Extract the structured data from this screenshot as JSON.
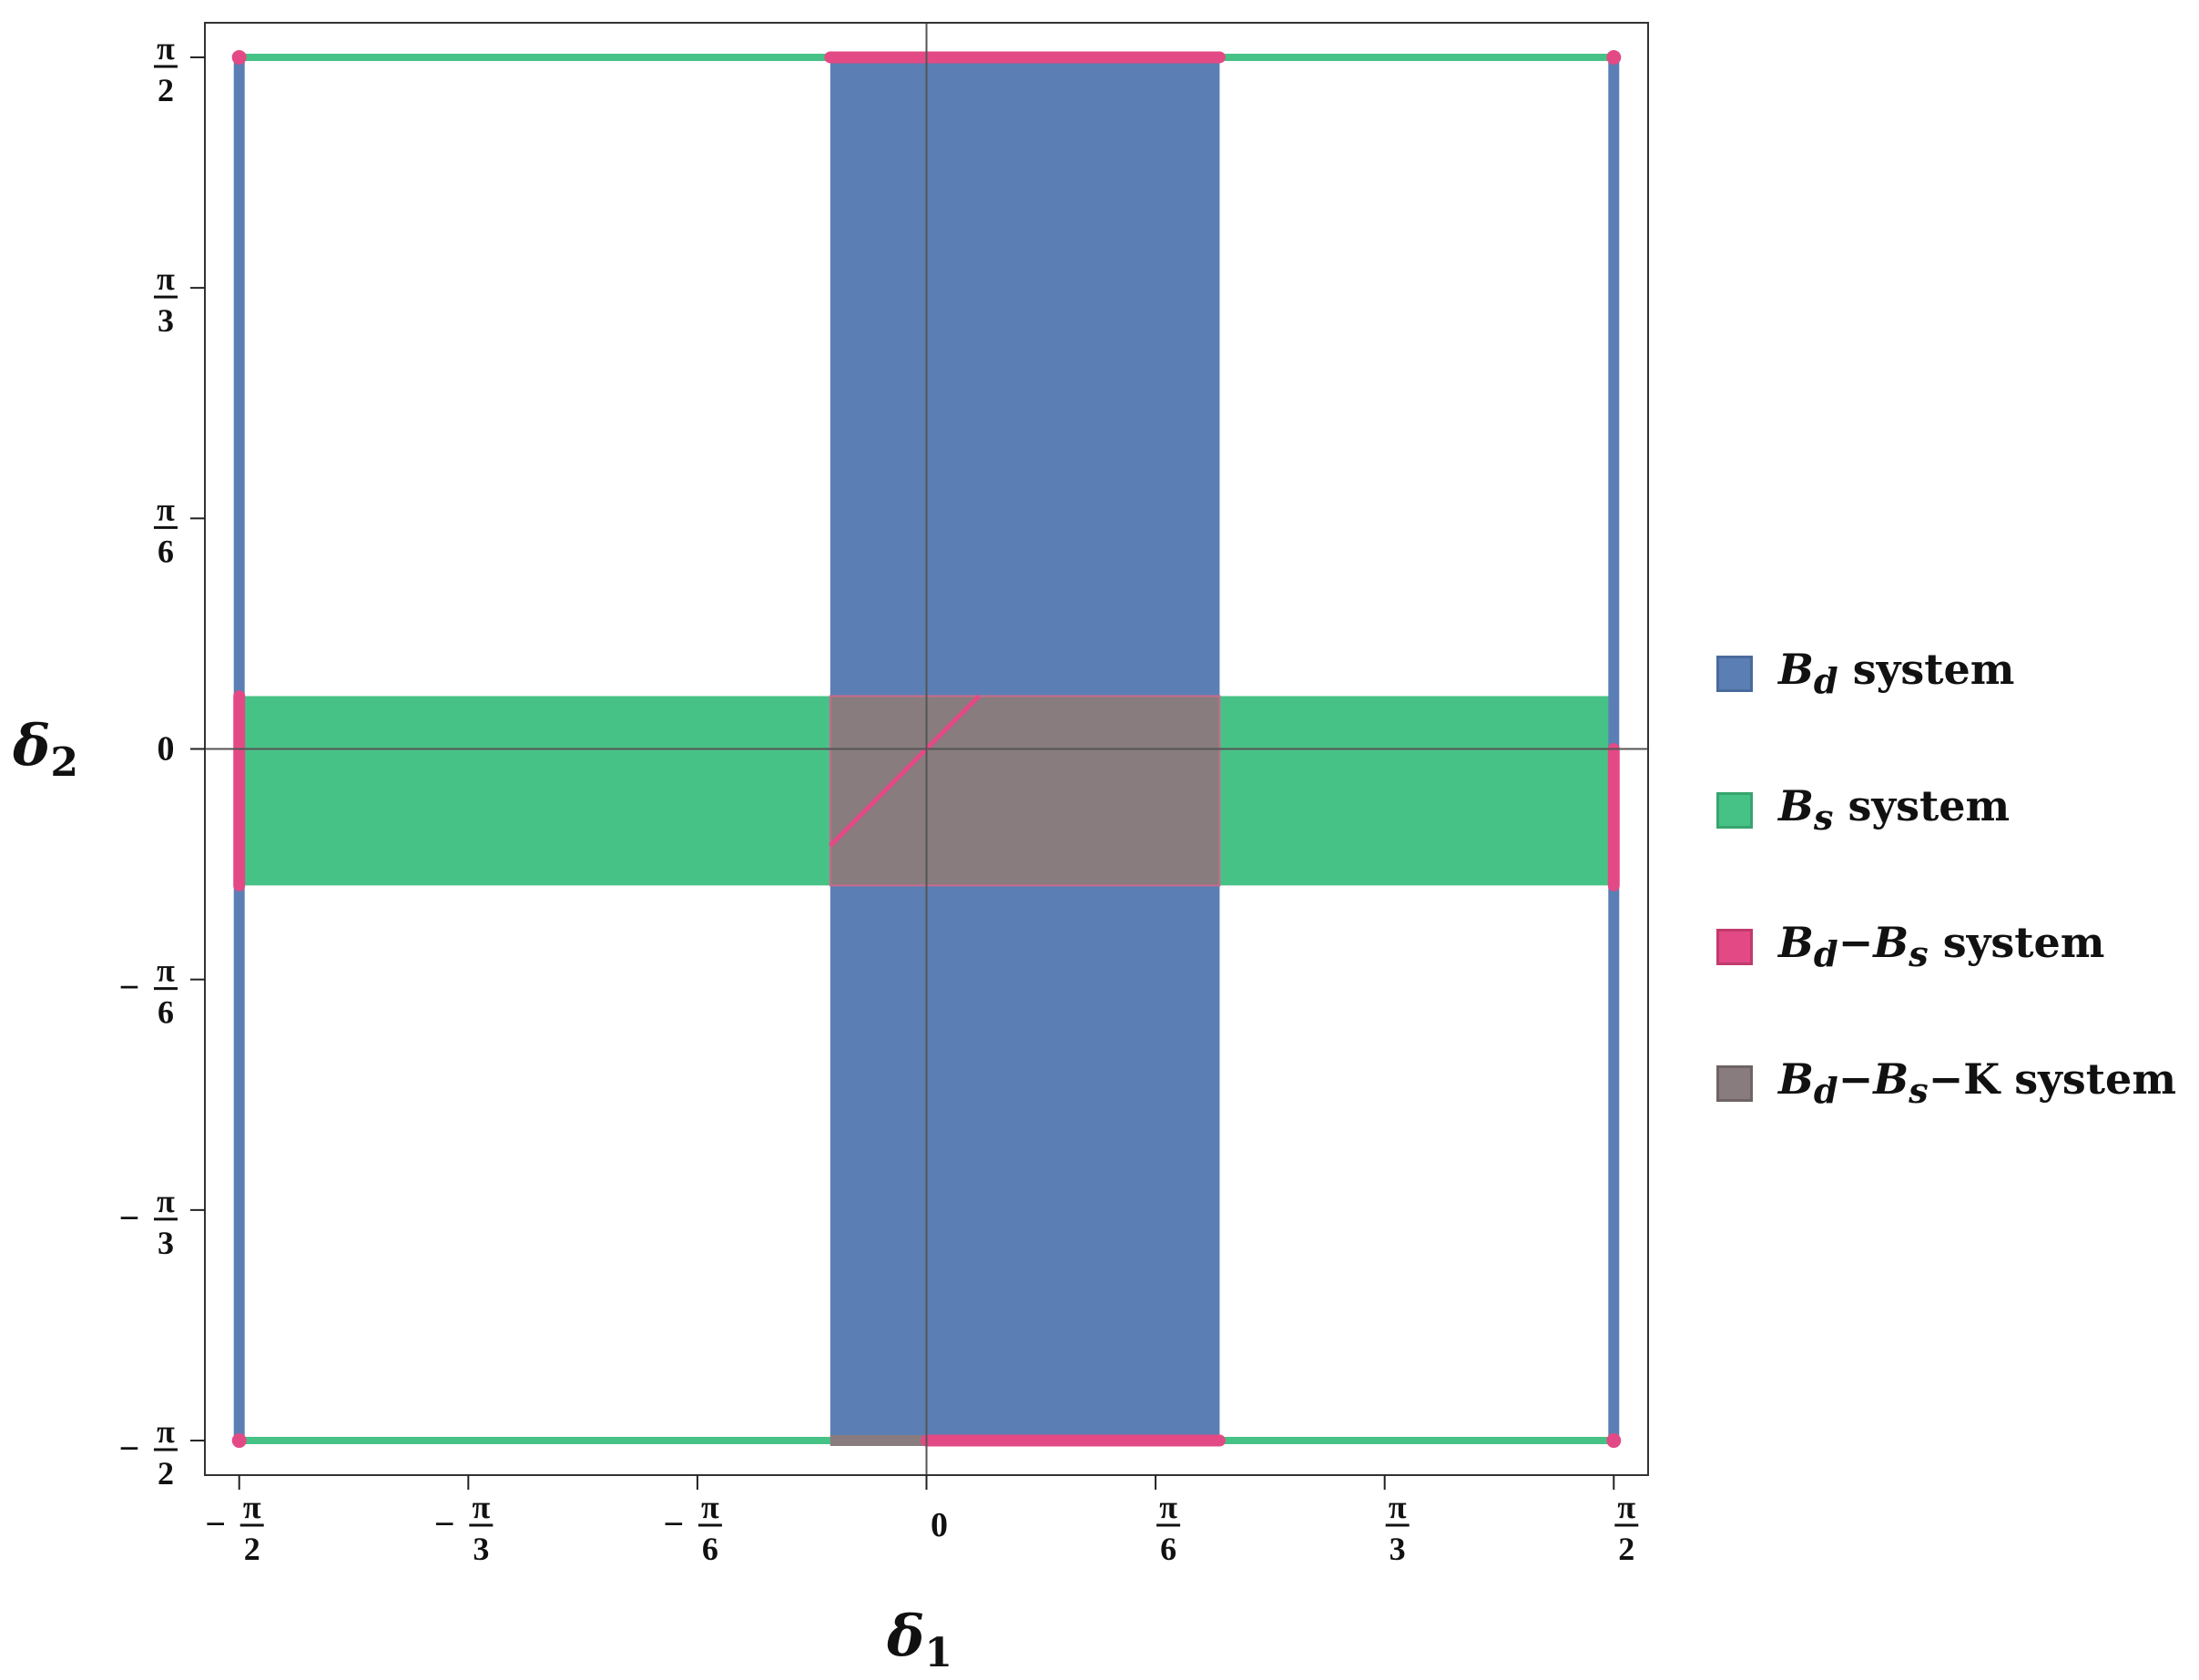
{
  "chart_data": {
    "type": "region",
    "xlabel": "δ1",
    "ylabel": "δ2",
    "xlim": [
      -1.6493,
      1.6493
    ],
    "ylim": [
      -1.6493,
      1.6493
    ],
    "x_ticks": [
      {
        "value": -1.5708,
        "sign": "−",
        "num": "π",
        "den": "2"
      },
      {
        "value": -1.0472,
        "sign": "−",
        "num": "π",
        "den": "3"
      },
      {
        "value": -0.5236,
        "sign": "−",
        "num": "π",
        "den": "6"
      },
      {
        "value": 0,
        "plain": "0"
      },
      {
        "value": 0.5236,
        "sign": "",
        "num": "π",
        "den": "6"
      },
      {
        "value": 1.0472,
        "sign": "",
        "num": "π",
        "den": "3"
      },
      {
        "value": 1.5708,
        "sign": "",
        "num": "π",
        "den": "2"
      }
    ],
    "y_ticks": [
      {
        "value": 1.5708,
        "sign": "",
        "num": "π",
        "den": "2"
      },
      {
        "value": 1.0472,
        "sign": "",
        "num": "π",
        "den": "3"
      },
      {
        "value": 0.5236,
        "sign": "",
        "num": "π",
        "den": "6"
      },
      {
        "value": 0,
        "plain": "0"
      },
      {
        "value": -0.5236,
        "sign": "−",
        "num": "π",
        "den": "6"
      },
      {
        "value": -1.0472,
        "sign": "−",
        "num": "π",
        "den": "3"
      },
      {
        "value": -1.5708,
        "sign": "−",
        "num": "π",
        "den": "2"
      }
    ],
    "colors": {
      "Bd": "#5b7fb4",
      "Bs": "#47c286",
      "BdBs": "#e34a85",
      "BdBsK": "#887c7e"
    },
    "regions": {
      "Bd": {
        "band": {
          "x": [
            -0.22,
            0.67
          ],
          "y": [
            -1.5708,
            1.5708
          ]
        },
        "lines": [
          {
            "x": -1.5708,
            "y": [
              -1.5708,
              1.5708
            ]
          },
          {
            "x": 1.5708,
            "y": [
              -1.5708,
              1.5708
            ]
          }
        ]
      },
      "Bs": {
        "band": {
          "x": [
            -1.5708,
            1.5708
          ],
          "y": [
            -0.31,
            0.12
          ]
        },
        "lines": [
          {
            "y": 1.5708,
            "x": [
              -1.5708,
              1.5708
            ]
          },
          {
            "y": -1.5708,
            "x": [
              -1.5708,
              1.5708
            ]
          }
        ]
      },
      "BdBs": {
        "segments": [
          {
            "y": 1.5708,
            "x": [
              -0.22,
              0.67
            ]
          },
          {
            "y": -1.5708,
            "x": [
              0.0,
              0.67
            ]
          },
          {
            "x": -1.5708,
            "y": [
              -0.31,
              0.12
            ]
          },
          {
            "x": 1.5708,
            "y": [
              -0.31,
              0.0
            ]
          }
        ],
        "curve": {
          "x": [
            -0.22,
            -0.1,
            0.0,
            0.05,
            0.12
          ],
          "y": [
            -0.22,
            -0.1,
            0.0,
            0.05,
            0.12
          ]
        },
        "dots": [
          {
            "x": -1.5708,
            "y": 1.5708
          },
          {
            "x": 1.5708,
            "y": 1.5708
          },
          {
            "x": -1.5708,
            "y": -1.5708
          },
          {
            "x": 1.5708,
            "y": -1.5708
          }
        ]
      },
      "BdBsK": {
        "band": {
          "x": [
            -0.22,
            0.67
          ],
          "y": [
            -0.31,
            0.12
          ]
        },
        "segments": [
          {
            "y": -1.5708,
            "x": [
              -0.22,
              0.0
            ]
          }
        ]
      }
    },
    "legend": {
      "position": "right",
      "entries": [
        {
          "key": "Bd",
          "label": "Bd system"
        },
        {
          "key": "Bs",
          "label": "Bs system"
        },
        {
          "key": "BdBs",
          "label": "Bd−Bs system"
        },
        {
          "key": "BdBsK",
          "label": "Bd−Bs−K system"
        }
      ]
    }
  },
  "legend": {
    "bd": {
      "main": "B",
      "sub": "d",
      "rest": " system"
    },
    "bs": {
      "main": "B",
      "sub": "s",
      "rest": " system"
    },
    "bdbs": {
      "b1": "B",
      "s1": "d",
      "dash": "−",
      "b2": "B",
      "s2": "s",
      "rest": " system"
    },
    "bdbsk": {
      "b1": "B",
      "s1": "d",
      "dash": "−",
      "b2": "B",
      "s2": "s",
      "dash2": "−K",
      "rest": " system"
    }
  },
  "axes": {
    "x_title": {
      "main": "δ",
      "sub": "1"
    },
    "y_title": {
      "main": "δ",
      "sub": "2"
    }
  }
}
